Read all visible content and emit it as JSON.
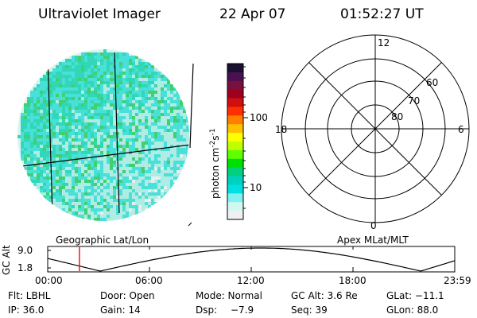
{
  "header": {
    "instrument": "Ultraviolet Imager",
    "date": "22 Apr 07",
    "time": "01:52:27 UT"
  },
  "colorbar": {
    "unit_text": "photon cm",
    "unit_exp1": "-2",
    "unit_mid": "s",
    "unit_exp2": "-1",
    "ticks": [
      "100",
      "10"
    ],
    "colors": [
      "#1a1030",
      "#4a1050",
      "#7a1040",
      "#a00020",
      "#d01010",
      "#ff3000",
      "#ff8000",
      "#ffc000",
      "#ffff00",
      "#c0ff00",
      "#60ff00",
      "#00e000",
      "#00d080",
      "#00d0c0",
      "#00e0e0",
      "#80f0f0",
      "#d0f8f0",
      "#f0f0f0"
    ]
  },
  "polar": {
    "mlt_labels": {
      "top": "12",
      "left": "18",
      "right": "6",
      "bottom": "0"
    },
    "lat_labels": [
      "60",
      "70",
      "80"
    ]
  },
  "alt_plot": {
    "ylabel": "GC Alt",
    "yticks": [
      "9.0",
      "1.8"
    ],
    "left_caption": "Geographic Lat/Lon",
    "right_caption": "Apex MLat/MLT",
    "xticks": [
      "00:00",
      "06:00",
      "12:00",
      "18:00",
      "23:59"
    ],
    "current_hour": 1.87,
    "marker_color": "#ff0000"
  },
  "info": {
    "flt": "Flt: LBHL",
    "door": "Door: Open",
    "mode": "Mode: Normal",
    "gcalt": "GC Alt: 3.6 Re",
    "glat": "GLat: −11.1",
    "ip": "IP: 36.0",
    "gain": "Gain: 14",
    "dsp_label": "Dsp:",
    "dsp_value": "−7.9",
    "seq": "Seq: 39",
    "glon": "GLon: 88.0"
  }
}
